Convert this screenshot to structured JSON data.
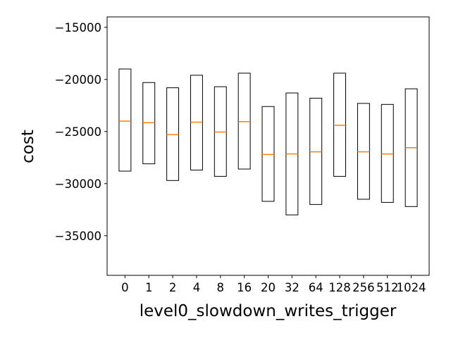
{
  "chart_data": {
    "type": "box",
    "xlabel": "level0_slowdown_writes_trigger",
    "ylabel": "cost",
    "categories": [
      "0",
      "1",
      "2",
      "4",
      "8",
      "16",
      "20",
      "32",
      "64",
      "128",
      "256",
      "512",
      "1024"
    ],
    "boxes": [
      {
        "q1": -28800,
        "median": -24000,
        "q3": -19000
      },
      {
        "q1": -28100,
        "median": -24150,
        "q3": -20300
      },
      {
        "q1": -29700,
        "median": -25300,
        "q3": -20800
      },
      {
        "q1": -28700,
        "median": -24100,
        "q3": -19600
      },
      {
        "q1": -29300,
        "median": -25050,
        "q3": -20700
      },
      {
        "q1": -28600,
        "median": -24050,
        "q3": -19400
      },
      {
        "q1": -31700,
        "median": -27200,
        "q3": -22600
      },
      {
        "q1": -33000,
        "median": -27150,
        "q3": -21300
      },
      {
        "q1": -32000,
        "median": -26950,
        "q3": -21800
      },
      {
        "q1": -29300,
        "median": -24400,
        "q3": -19400
      },
      {
        "q1": -31500,
        "median": -26950,
        "q3": -22300
      },
      {
        "q1": -31800,
        "median": -27150,
        "q3": -22400
      },
      {
        "q1": -32200,
        "median": -26550,
        "q3": -20900
      }
    ],
    "yticks": [
      -15000,
      -20000,
      -25000,
      -30000,
      -35000
    ],
    "ytick_labels": [
      "−15000",
      "−20000",
      "−25000",
      "−30000",
      "−35000"
    ],
    "ylim": [
      -38800,
      -14000
    ],
    "grid": false,
    "colors": {
      "box": "#000000",
      "median": "#ff7f0e"
    }
  }
}
